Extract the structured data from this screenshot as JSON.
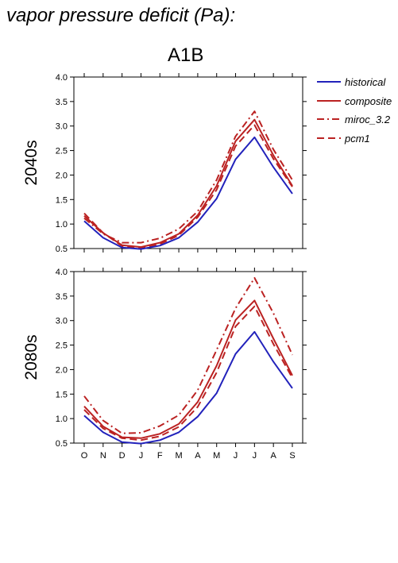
{
  "page_title": "vapor pressure deficit (Pa):",
  "scenario": "A1B",
  "colors": {
    "historical": "#2222bb",
    "future": "#bb2222",
    "axis": "#000000"
  },
  "chart_data": [
    {
      "type": "line",
      "period_label": "2040s",
      "title": "",
      "xlabel": "",
      "ylabel": "",
      "categories": [
        "O",
        "N",
        "D",
        "J",
        "F",
        "M",
        "A",
        "M",
        "J",
        "J",
        "A",
        "S"
      ],
      "ylim": [
        0.5,
        4.0
      ],
      "yticks": [
        "0.5",
        "1.0",
        "1.5",
        "2.0",
        "2.5",
        "3.0",
        "3.5",
        "4.0"
      ],
      "legend": "right",
      "series": [
        {
          "name": "historical",
          "style": "solid",
          "color": "#2222bb",
          "values": [
            1.06,
            0.72,
            0.52,
            0.49,
            0.56,
            0.72,
            1.04,
            1.52,
            2.32,
            2.77,
            2.16,
            1.62
          ]
        },
        {
          "name": "composite",
          "style": "solid",
          "color": "#bb2222",
          "values": [
            1.17,
            0.82,
            0.57,
            0.53,
            0.62,
            0.8,
            1.18,
            1.78,
            2.69,
            3.13,
            2.4,
            1.78
          ]
        },
        {
          "name": "miroc_3.2",
          "style": "dashdot",
          "color": "#bb2222",
          "values": [
            1.12,
            0.8,
            0.62,
            0.62,
            0.71,
            0.9,
            1.26,
            1.9,
            2.79,
            3.3,
            2.52,
            1.9
          ]
        },
        {
          "name": "pcm1",
          "style": "dashed",
          "color": "#bb2222",
          "values": [
            1.22,
            0.82,
            0.55,
            0.51,
            0.59,
            0.77,
            1.14,
            1.7,
            2.59,
            3.02,
            2.33,
            1.76
          ]
        }
      ]
    },
    {
      "type": "line",
      "period_label": "2080s",
      "title": "",
      "xlabel": "",
      "ylabel": "",
      "categories": [
        "O",
        "N",
        "D",
        "J",
        "F",
        "M",
        "A",
        "M",
        "J",
        "J",
        "A",
        "S"
      ],
      "ylim": [
        0.5,
        4.0
      ],
      "yticks": [
        "0.5",
        "1.0",
        "1.5",
        "2.0",
        "2.5",
        "3.0",
        "3.5",
        "4.0"
      ],
      "series": [
        {
          "name": "historical",
          "style": "solid",
          "color": "#2222bb",
          "values": [
            1.06,
            0.72,
            0.52,
            0.49,
            0.56,
            0.72,
            1.04,
            1.52,
            2.32,
            2.77,
            2.16,
            1.62
          ]
        },
        {
          "name": "composite",
          "style": "solid",
          "color": "#bb2222",
          "values": [
            1.25,
            0.84,
            0.62,
            0.6,
            0.69,
            0.89,
            1.34,
            2.08,
            3.01,
            3.41,
            2.63,
            1.88
          ]
        },
        {
          "name": "miroc_3.2",
          "style": "dashdot",
          "color": "#bb2222",
          "values": [
            1.46,
            0.96,
            0.7,
            0.71,
            0.85,
            1.07,
            1.58,
            2.4,
            3.25,
            3.87,
            3.15,
            2.3
          ]
        },
        {
          "name": "pcm1",
          "style": "dashed",
          "color": "#bb2222",
          "values": [
            1.18,
            0.8,
            0.6,
            0.56,
            0.64,
            0.83,
            1.24,
            1.94,
            2.88,
            3.29,
            2.52,
            1.83
          ]
        }
      ]
    }
  ]
}
